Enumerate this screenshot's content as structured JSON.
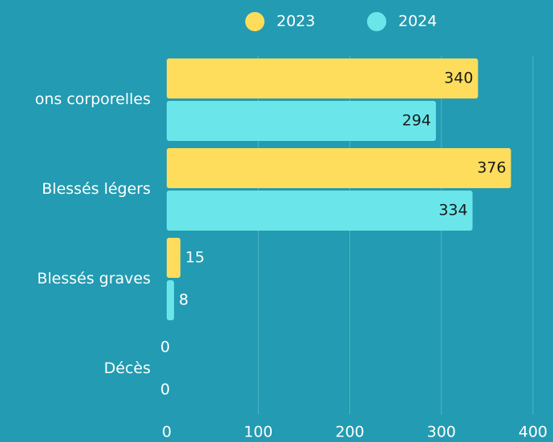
{
  "chart_data": {
    "type": "bar",
    "orientation": "horizontal",
    "categories": [
      "ons corporelles",
      "Blessés légers",
      "Blessés graves",
      "Décès"
    ],
    "series": [
      {
        "name": "2023",
        "color": "#fedd5c",
        "values": [
          340,
          376,
          15,
          0
        ]
      },
      {
        "name": "2024",
        "color": "#6ae6ea",
        "values": [
          294,
          334,
          8,
          0
        ]
      }
    ],
    "xlim": [
      0,
      400
    ],
    "xticks": [
      0,
      100,
      200,
      300,
      400
    ],
    "grid": true,
    "legend": "top"
  }
}
